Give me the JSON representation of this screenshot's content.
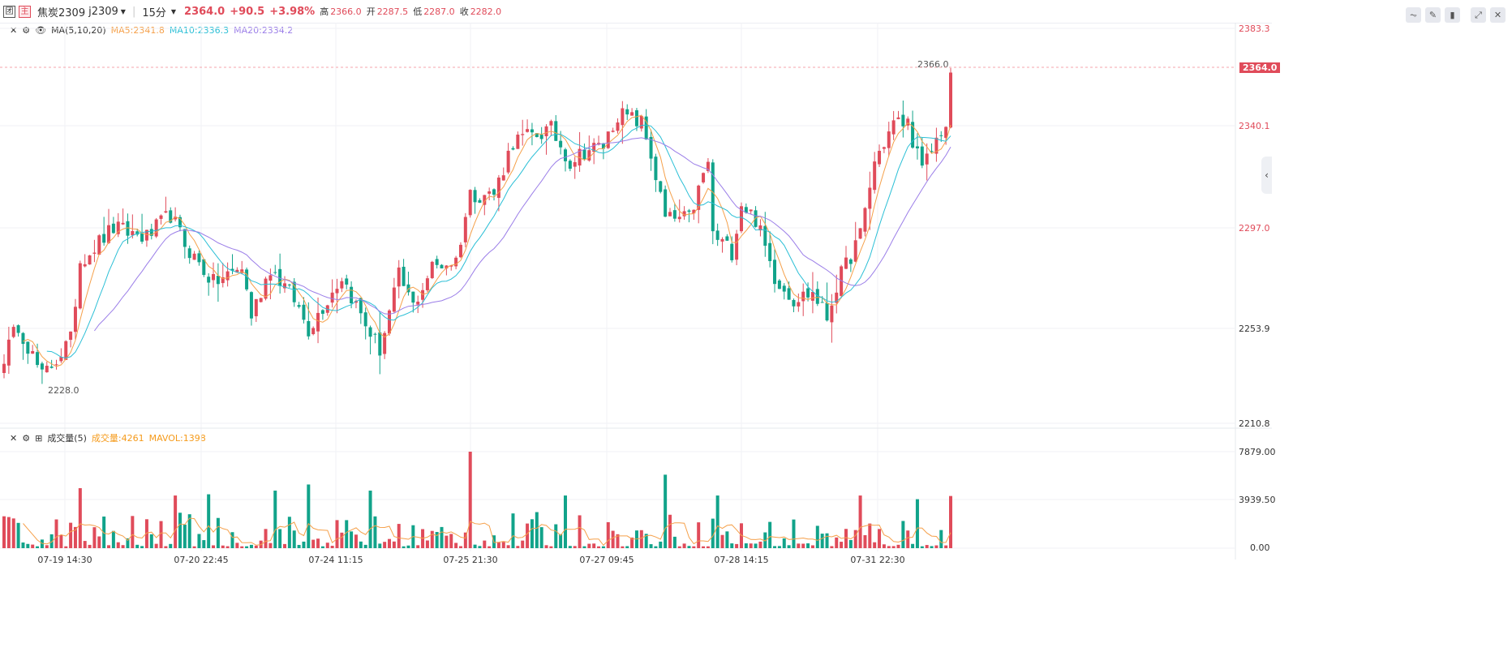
{
  "header": {
    "badge1": "团",
    "badge2": "主",
    "name": "焦炭2309",
    "code": "j2309",
    "period": "15分",
    "price": "2364.0",
    "change": "+90.5",
    "pct": "+3.98%",
    "high_label": "高",
    "high": "2366.0",
    "open_label": "开",
    "open": "2287.5",
    "low_label": "低",
    "low": "2287.0",
    "close_label": "收",
    "close": "2282.0"
  },
  "toolbar": [
    "indicator",
    "draw",
    "candle-type",
    "fullscreen",
    "close"
  ],
  "ma_legend": {
    "name": "MA(5,10,20)",
    "ma5": "MA5:2341.8",
    "ma10": "MA10:2336.3",
    "ma20": "MA20:2334.2"
  },
  "vol_legend": {
    "name": "成交量(5)",
    "vol": "成交量:4261",
    "mavol": "MAVOL:1398"
  },
  "colors": {
    "up": "#e04b5a",
    "down": "#11a38a",
    "ma5": "#f5a04a",
    "ma10": "#2bbfd6",
    "ma20": "#9b7ee8"
  },
  "chart_data": {
    "type": "candlestick",
    "price_axis": [
      "2383.3",
      "2340.1",
      "2297.0",
      "2253.9",
      "2210.8"
    ],
    "ylim": [
      2210.8,
      2383.3
    ],
    "current_price": "2364.0",
    "max_label": "2366.0",
    "min_label": "2228.0",
    "volume_axis": [
      "7879.00",
      "3939.50",
      "0.00"
    ],
    "vol_ylim": [
      0,
      7879
    ],
    "x_ticks": [
      "07-19 14:30",
      "07-20 22:45",
      "07-24 11:15",
      "07-25 21:30",
      "07-27 09:45",
      "07-28 14:15",
      "07-31 22:30"
    ],
    "candle_count": 200,
    "close_waypoints": [
      [
        0,
        2240
      ],
      [
        3,
        2254
      ],
      [
        8,
        2231
      ],
      [
        14,
        2247
      ],
      [
        16,
        2282
      ],
      [
        23,
        2296
      ],
      [
        30,
        2292
      ],
      [
        35,
        2302
      ],
      [
        38,
        2289
      ],
      [
        44,
        2272
      ],
      [
        50,
        2279
      ],
      [
        52,
        2258
      ],
      [
        56,
        2279
      ],
      [
        61,
        2265
      ],
      [
        64,
        2252
      ],
      [
        71,
        2275
      ],
      [
        76,
        2254
      ],
      [
        79,
        2243
      ],
      [
        83,
        2275
      ],
      [
        86,
        2262
      ],
      [
        90,
        2279
      ],
      [
        95,
        2282
      ],
      [
        98,
        2311
      ],
      [
        103,
        2311
      ],
      [
        107,
        2334
      ],
      [
        115,
        2339
      ],
      [
        119,
        2325
      ],
      [
        122,
        2330
      ],
      [
        126,
        2332
      ],
      [
        129,
        2346
      ],
      [
        134,
        2342
      ],
      [
        136,
        2328
      ],
      [
        139,
        2300
      ],
      [
        144,
        2300
      ],
      [
        148,
        2325
      ],
      [
        149,
        2293
      ],
      [
        153,
        2286
      ],
      [
        155,
        2307
      ],
      [
        158,
        2300
      ],
      [
        162,
        2275
      ],
      [
        166,
        2265
      ],
      [
        170,
        2268
      ],
      [
        173,
        2257
      ],
      [
        175,
        2271
      ],
      [
        180,
        2293
      ],
      [
        183,
        2325
      ],
      [
        187,
        2342
      ],
      [
        190,
        2342
      ],
      [
        193,
        2321
      ],
      [
        197,
        2339
      ],
      [
        198,
        2340
      ],
      [
        199,
        2364
      ]
    ],
    "volume_peaks": [
      [
        16,
        4900
      ],
      [
        98,
        7879
      ],
      [
        139,
        6000
      ],
      [
        64,
        5200
      ],
      [
        57,
        4700
      ],
      [
        77,
        4700
      ],
      [
        118,
        4300
      ],
      [
        150,
        4300
      ],
      [
        180,
        4300
      ],
      [
        43,
        4400
      ],
      [
        36,
        4300
      ],
      [
        192,
        4000
      ],
      [
        199,
        4261
      ]
    ]
  }
}
